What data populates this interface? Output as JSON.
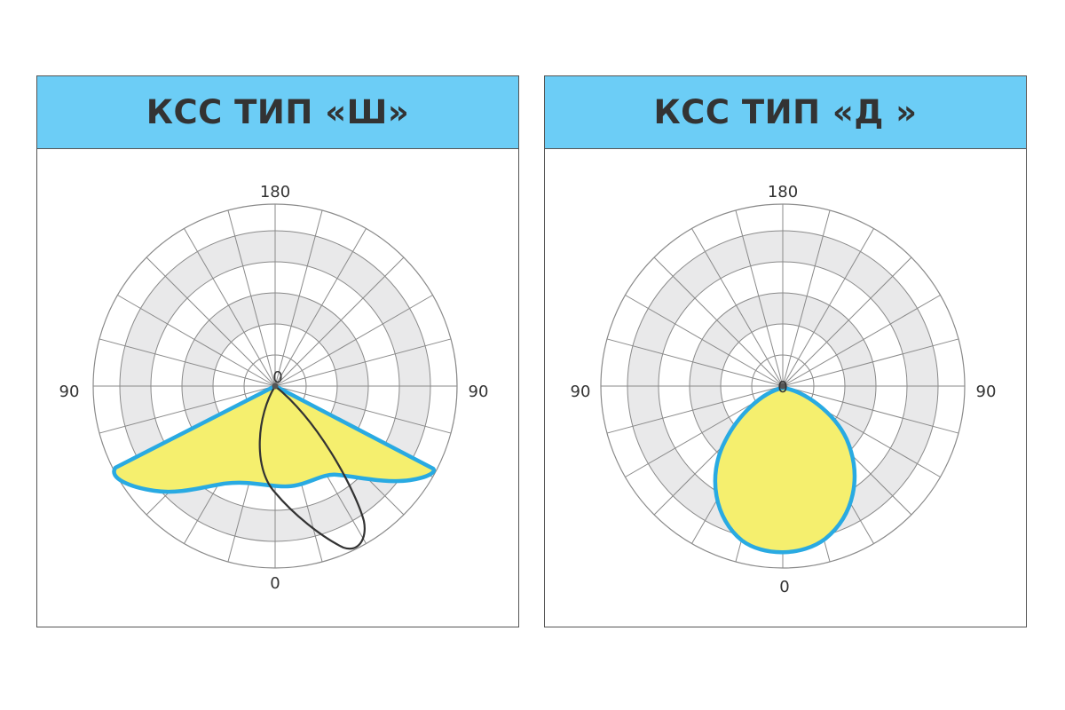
{
  "panels": [
    {
      "title": "КСС ТИП «Ш»",
      "labels": {
        "top": "180",
        "left": "90",
        "right": "90",
        "bottom": "0",
        "center": "0"
      }
    },
    {
      "title": "КСС ТИП «Д »",
      "labels": {
        "top": "180",
        "left": "90",
        "right": "90",
        "bottom": "0",
        "center": "0"
      }
    }
  ],
  "colors": {
    "header_fill": "#6ccdf6",
    "curve_fill": "#f5ef6e",
    "curve_outline": "#29aae2",
    "secondary_curve": "#333333",
    "grid_line": "#8a8a8a",
    "band_fill": "#e9e9ea"
  }
}
